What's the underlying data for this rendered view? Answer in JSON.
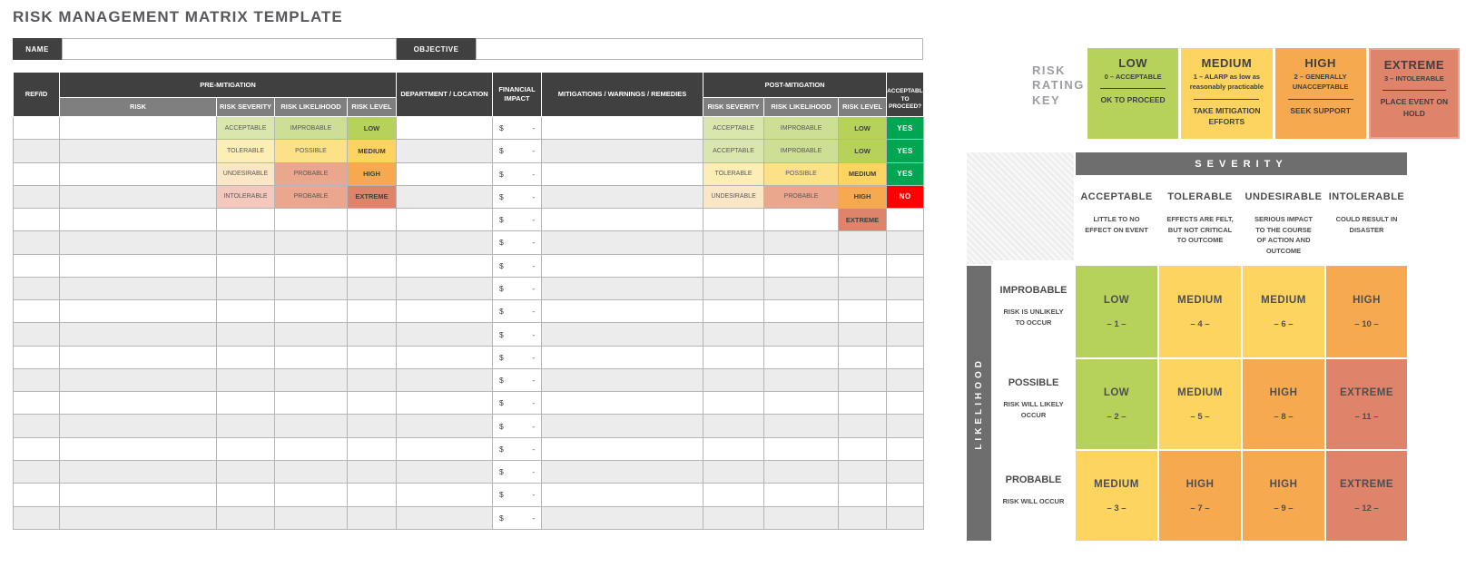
{
  "title": "RISK MANAGEMENT MATRIX TEMPLATE",
  "form": {
    "name_label": "NAME",
    "name_value": "",
    "objective_label": "OBJECTIVE",
    "objective_value": ""
  },
  "table": {
    "headers": {
      "ref": "REF/ID",
      "pre_mitigation": "PRE-MITIGATION",
      "risk": "RISK",
      "risk_severity": "RISK SEVERITY",
      "risk_likelihood": "RISK LIKELIHOOD",
      "risk_level": "RISK LEVEL",
      "department": "DEPARTMENT / LOCATION",
      "financial": "FINANCIAL IMPACT",
      "mitigations": "MITIGATIONS / WARNINGS / REMEDIES",
      "post_mitigation": "POST-MITIGATION",
      "proceed": "ACCEPTABLE TO PROCEED?"
    },
    "financial_cell": {
      "currency": "$",
      "value": "-"
    },
    "rows": [
      {
        "pre": [
          "ACCEPTABLE",
          "IMPROBABLE",
          "LOW"
        ],
        "post": [
          "ACCEPTABLE",
          "IMPROBABLE",
          "LOW",
          "YES"
        ]
      },
      {
        "pre": [
          "TOLERABLE",
          "POSSIBLE",
          "MEDIUM"
        ],
        "post": [
          "ACCEPTABLE",
          "IMPROBABLE",
          "LOW",
          "YES"
        ]
      },
      {
        "pre": [
          "UNDESIRABLE",
          "PROBABLE",
          "HIGH"
        ],
        "post": [
          "TOLERABLE",
          "POSSIBLE",
          "MEDIUM",
          "YES"
        ]
      },
      {
        "pre": [
          "INTOLERABLE",
          "PROBABLE",
          "EXTREME"
        ],
        "post": [
          "UNDESIRABLE",
          "PROBABLE",
          "HIGH",
          "NO"
        ]
      },
      {
        "pre": [
          "",
          "",
          ""
        ],
        "post": [
          "",
          "",
          "EXTREME",
          ""
        ]
      },
      {
        "pre": [
          "",
          "",
          ""
        ],
        "post": [
          "",
          "",
          "",
          ""
        ]
      },
      {
        "pre": [
          "",
          "",
          ""
        ],
        "post": [
          "",
          "",
          "",
          ""
        ]
      },
      {
        "pre": [
          "",
          "",
          ""
        ],
        "post": [
          "",
          "",
          "",
          ""
        ]
      },
      {
        "pre": [
          "",
          "",
          ""
        ],
        "post": [
          "",
          "",
          "",
          ""
        ]
      },
      {
        "pre": [
          "",
          "",
          ""
        ],
        "post": [
          "",
          "",
          "",
          ""
        ]
      },
      {
        "pre": [
          "",
          "",
          ""
        ],
        "post": [
          "",
          "",
          "",
          ""
        ]
      },
      {
        "pre": [
          "",
          "",
          ""
        ],
        "post": [
          "",
          "",
          "",
          ""
        ]
      },
      {
        "pre": [
          "",
          "",
          ""
        ],
        "post": [
          "",
          "",
          "",
          ""
        ]
      },
      {
        "pre": [
          "",
          "",
          ""
        ],
        "post": [
          "",
          "",
          "",
          ""
        ]
      },
      {
        "pre": [
          "",
          "",
          ""
        ],
        "post": [
          "",
          "",
          "",
          ""
        ]
      },
      {
        "pre": [
          "",
          "",
          ""
        ],
        "post": [
          "",
          "",
          "",
          ""
        ]
      },
      {
        "pre": [
          "",
          "",
          ""
        ],
        "post": [
          "",
          "",
          "",
          ""
        ]
      },
      {
        "pre": [
          "",
          "",
          ""
        ],
        "post": [
          "",
          "",
          "",
          ""
        ]
      }
    ]
  },
  "palette": {
    "ACCEPTABLE": "#d9e6ad",
    "TOLERABLE": "#fdeeb5",
    "UNDESIRABLE": "#fbe7c6",
    "INTOLERABLE": "#f4c8bd",
    "IMPROBABLE": "#cdde95",
    "POSSIBLE": "#fce187",
    "PROBABLE": "#eba78e",
    "LOW": "#b7d25b",
    "MEDIUM": "#fcd45f",
    "HIGH": "#f6a94f",
    "EXTREME": "#e0836b",
    "YES": "#00a651",
    "NO": "#fe0000"
  },
  "key": {
    "label_lines": [
      "RISK",
      "RATING",
      "KEY"
    ],
    "items": [
      {
        "name": "LOW",
        "sub": "0 – ACCEPTABLE",
        "action": "OK TO PROCEED",
        "color": "#b7d25b",
        "border": ""
      },
      {
        "name": "MEDIUM",
        "sub": "1 – ALARP as low as reasonably practicable",
        "action": "TAKE MITIGATION EFFORTS",
        "color": "#fcd45f",
        "border": ""
      },
      {
        "name": "HIGH",
        "sub": "2 – GENERALLY UNACCEPTABLE",
        "action": "SEEK SUPPORT",
        "color": "#f6a94f",
        "border": ""
      },
      {
        "name": "EXTREME",
        "sub": "3 – INTOLERABLE",
        "action": "PLACE EVENT ON HOLD",
        "color": "#e0836b",
        "border": "#efa390"
      }
    ]
  },
  "matrix": {
    "severity_label": "SEVERITY",
    "likelihood_label": "LIKELIHOOD",
    "severity_columns": [
      {
        "name": "ACCEPTABLE",
        "description": "LITTLE TO NO EFFECT ON EVENT"
      },
      {
        "name": "TOLERABLE",
        "description": "EFFECTS ARE FELT, BUT NOT CRITICAL TO OUTCOME"
      },
      {
        "name": "UNDESIRABLE",
        "description": "SERIOUS IMPACT TO THE COURSE OF ACTION AND OUTCOME"
      },
      {
        "name": "INTOLERABLE",
        "description": "COULD RESULT IN DISASTER"
      }
    ],
    "rows": [
      {
        "name": "IMPROBABLE",
        "description": "RISK IS UNLIKELY TO OCCUR",
        "cells": [
          {
            "rating": "LOW",
            "num": "– 1 –"
          },
          {
            "rating": "MEDIUM",
            "num": "– 4 –"
          },
          {
            "rating": "MEDIUM",
            "num": "– 6 –"
          },
          {
            "rating": "HIGH",
            "num": "– 10 –"
          }
        ]
      },
      {
        "name": "POSSIBLE",
        "description": "RISK WILL LIKELY OCCUR",
        "cells": [
          {
            "rating": "LOW",
            "num": "– 2 –"
          },
          {
            "rating": "MEDIUM",
            "num": "– 5 –"
          },
          {
            "rating": "HIGH",
            "num": "– 8 –"
          },
          {
            "rating": "EXTREME",
            "num": "– 11 –"
          }
        ]
      },
      {
        "name": "PROBABLE",
        "description": "RISK WILL OCCUR",
        "cells": [
          {
            "rating": "MEDIUM",
            "num": "– 3 –"
          },
          {
            "rating": "HIGH",
            "num": "– 7 –"
          },
          {
            "rating": "HIGH",
            "num": "– 9 –"
          },
          {
            "rating": "EXTREME",
            "num": "– 12 –"
          }
        ]
      }
    ]
  }
}
